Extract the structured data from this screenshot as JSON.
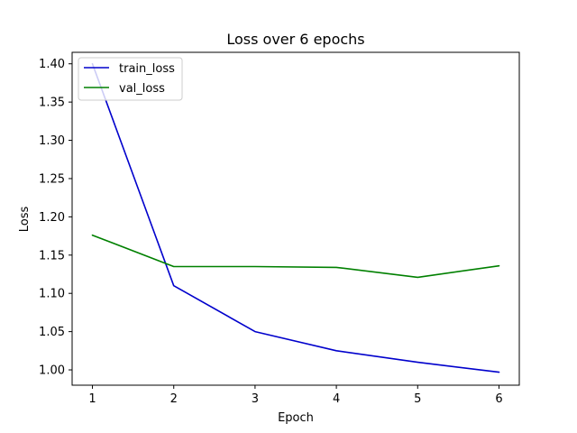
{
  "chart_data": {
    "type": "line",
    "title": "Loss over 6 epochs",
    "xlabel": "Epoch",
    "ylabel": "Loss",
    "x": [
      1,
      2,
      3,
      4,
      5,
      6
    ],
    "xticks": [
      "1",
      "2",
      "3",
      "4",
      "5",
      "6"
    ],
    "yticks": [
      "1.00",
      "1.05",
      "1.10",
      "1.15",
      "1.20",
      "1.25",
      "1.30",
      "1.35",
      "1.40"
    ],
    "xlim": [
      0.75,
      6.25
    ],
    "ylim": [
      0.98,
      1.415
    ],
    "grid": false,
    "legend_position": "top-left",
    "series": [
      {
        "name": "train_loss",
        "color": "#0000cc",
        "values": [
          1.4,
          1.11,
          1.05,
          1.025,
          1.01,
          0.997
        ]
      },
      {
        "name": "val_loss",
        "color": "#008000",
        "values": [
          1.176,
          1.135,
          1.135,
          1.134,
          1.121,
          1.136
        ]
      }
    ]
  }
}
